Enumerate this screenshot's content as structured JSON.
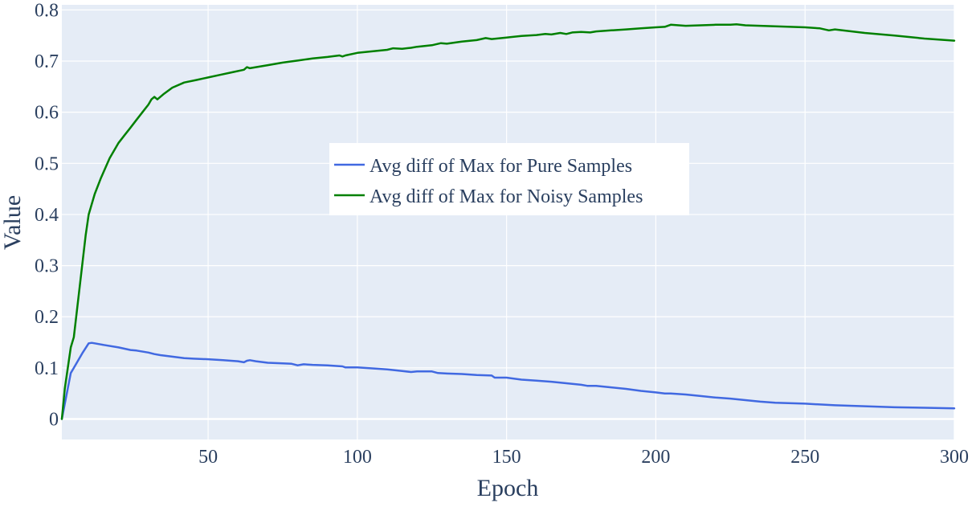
{
  "chart_data": {
    "type": "line",
    "xlabel": "Epoch",
    "ylabel": "Value",
    "xlim": [
      1,
      300
    ],
    "ylim": [
      -0.04,
      0.81
    ],
    "xticks": [
      50,
      100,
      150,
      200,
      250,
      300
    ],
    "yticks": [
      0,
      0.1,
      0.2,
      0.3,
      0.4,
      0.5,
      0.6,
      0.7,
      0.8
    ],
    "grid": true,
    "legend_position": "center",
    "background_color": "#e5ecf6",
    "grid_color": "#ffffff",
    "series": [
      {
        "name": "Avg diff of Max for Pure Samples",
        "color": "#4169e1",
        "x": [
          1,
          2,
          3,
          4,
          5,
          6,
          8,
          10,
          11,
          12,
          15,
          20,
          24,
          26,
          30,
          32,
          34,
          38,
          42,
          45,
          50,
          55,
          60,
          62,
          63,
          64,
          66,
          70,
          75,
          78,
          80,
          82,
          85,
          90,
          95,
          96,
          100,
          105,
          110,
          115,
          118,
          120,
          125,
          127,
          130,
          135,
          140,
          145,
          146,
          150,
          155,
          160,
          165,
          170,
          175,
          177,
          180,
          185,
          190,
          195,
          200,
          203,
          205,
          210,
          215,
          220,
          225,
          230,
          235,
          240,
          250,
          260,
          270,
          275,
          280,
          290,
          300
        ],
        "y": [
          0.0,
          0.03,
          0.06,
          0.09,
          0.1,
          0.11,
          0.13,
          0.148,
          0.149,
          0.148,
          0.145,
          0.14,
          0.135,
          0.134,
          0.13,
          0.127,
          0.125,
          0.122,
          0.119,
          0.118,
          0.117,
          0.115,
          0.113,
          0.111,
          0.114,
          0.115,
          0.113,
          0.11,
          0.109,
          0.108,
          0.105,
          0.107,
          0.106,
          0.105,
          0.103,
          0.101,
          0.101,
          0.099,
          0.097,
          0.094,
          0.092,
          0.093,
          0.093,
          0.09,
          0.089,
          0.088,
          0.086,
          0.085,
          0.081,
          0.081,
          0.077,
          0.075,
          0.073,
          0.07,
          0.067,
          0.065,
          0.065,
          0.062,
          0.059,
          0.055,
          0.052,
          0.05,
          0.05,
          0.048,
          0.045,
          0.042,
          0.04,
          0.037,
          0.034,
          0.032,
          0.03,
          0.027,
          0.025,
          0.024,
          0.023,
          0.022,
          0.021
        ]
      },
      {
        "name": "Avg diff of Max for Noisy Samples",
        "color": "#008000",
        "x": [
          1,
          2,
          3,
          4,
          5,
          7,
          9,
          10,
          12,
          14,
          17,
          20,
          22,
          24,
          26,
          28,
          30,
          31,
          32,
          33,
          35,
          38,
          42,
          46,
          50,
          54,
          58,
          62,
          63,
          64,
          66,
          70,
          75,
          80,
          85,
          90,
          94,
          95,
          96,
          100,
          105,
          110,
          112,
          115,
          118,
          120,
          125,
          128,
          130,
          135,
          140,
          143,
          145,
          150,
          155,
          160,
          163,
          165,
          168,
          170,
          172,
          175,
          178,
          180,
          185,
          190,
          195,
          200,
          203,
          205,
          210,
          215,
          220,
          225,
          227,
          230,
          240,
          250,
          255,
          258,
          260,
          270,
          280,
          290,
          300
        ],
        "y": [
          0.0,
          0.06,
          0.1,
          0.14,
          0.16,
          0.26,
          0.36,
          0.4,
          0.44,
          0.47,
          0.51,
          0.54,
          0.555,
          0.57,
          0.585,
          0.6,
          0.615,
          0.625,
          0.63,
          0.625,
          0.635,
          0.648,
          0.658,
          0.663,
          0.668,
          0.673,
          0.678,
          0.683,
          0.688,
          0.686,
          0.688,
          0.692,
          0.697,
          0.701,
          0.705,
          0.708,
          0.711,
          0.709,
          0.711,
          0.716,
          0.719,
          0.722,
          0.725,
          0.724,
          0.726,
          0.728,
          0.731,
          0.735,
          0.734,
          0.738,
          0.741,
          0.745,
          0.743,
          0.746,
          0.749,
          0.751,
          0.753,
          0.752,
          0.755,
          0.753,
          0.756,
          0.757,
          0.756,
          0.758,
          0.76,
          0.762,
          0.764,
          0.766,
          0.767,
          0.771,
          0.769,
          0.77,
          0.771,
          0.771,
          0.772,
          0.77,
          0.768,
          0.766,
          0.764,
          0.76,
          0.762,
          0.755,
          0.75,
          0.744,
          0.74
        ]
      }
    ]
  }
}
